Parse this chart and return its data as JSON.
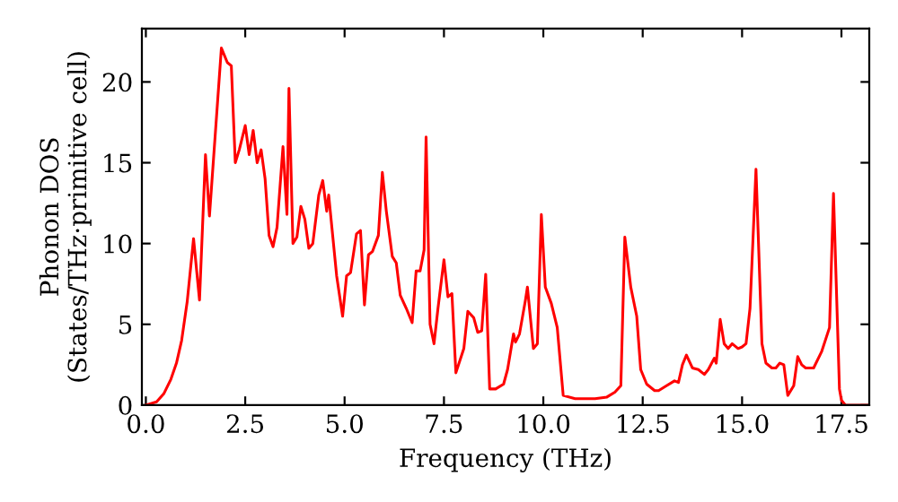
{
  "chart_data": {
    "type": "line",
    "xlabel": "Frequency (THz)",
    "ylabel": "Phonon DOS\n(States/THz·primitive cell)",
    "xlim": [
      -0.1,
      18.2
    ],
    "ylim": [
      0,
      23.3
    ],
    "xticks": [
      {
        "value": 0,
        "label": "0.0"
      },
      {
        "value": 2.5,
        "label": "2.5"
      },
      {
        "value": 5,
        "label": "5.0"
      },
      {
        "value": 7.5,
        "label": "7.5"
      },
      {
        "value": 10,
        "label": "10.0"
      },
      {
        "value": 12.5,
        "label": "12.5"
      },
      {
        "value": 15,
        "label": "15.0"
      },
      {
        "value": 17.5,
        "label": "17.5"
      }
    ],
    "yticks": [
      0,
      5,
      10,
      15,
      20
    ],
    "grid": false,
    "legend": false,
    "marker": "none",
    "line_style": "solid",
    "series": [
      {
        "color": "#ff0000",
        "x": [
          0,
          0.27,
          0.45,
          0.63,
          0.77,
          0.9,
          1.04,
          1.2,
          1.35,
          1.5,
          1.6,
          1.9,
          2.05,
          2.15,
          2.25,
          2.35,
          2.5,
          2.6,
          2.7,
          2.8,
          2.9,
          3.0,
          3.1,
          3.2,
          3.3,
          3.45,
          3.55,
          3.6,
          3.7,
          3.8,
          3.9,
          4.0,
          4.1,
          4.2,
          4.35,
          4.45,
          4.55,
          4.6,
          4.8,
          4.95,
          5.05,
          5.15,
          5.3,
          5.4,
          5.5,
          5.6,
          5.7,
          5.85,
          5.95,
          6.05,
          6.2,
          6.3,
          6.4,
          6.55,
          6.7,
          6.8,
          6.9,
          7.0,
          7.05,
          7.15,
          7.25,
          7.35,
          7.5,
          7.6,
          7.7,
          7.8,
          8.0,
          8.1,
          8.25,
          8.35,
          8.45,
          8.55,
          8.65,
          8.8,
          9.0,
          9.1,
          9.25,
          9.3,
          9.4,
          9.55,
          9.6,
          9.75,
          9.85,
          9.95,
          10.05,
          10.2,
          10.35,
          10.5,
          10.8,
          11.3,
          11.6,
          11.8,
          11.95,
          12.05,
          12.2,
          12.35,
          12.45,
          12.6,
          12.8,
          12.9,
          13.1,
          13.3,
          13.4,
          13.5,
          13.6,
          13.75,
          13.9,
          14.05,
          14.15,
          14.3,
          14.35,
          14.45,
          14.55,
          14.65,
          14.75,
          14.9,
          15.0,
          15.1,
          15.2,
          15.35,
          15.5,
          15.6,
          15.75,
          15.85,
          15.95,
          16.05,
          16.15,
          16.3,
          16.4,
          16.5,
          16.6,
          16.8,
          17.0,
          17.2,
          17.3,
          17.45,
          17.5,
          17.6,
          18.2
        ],
        "values": [
          0,
          0.2,
          0.7,
          1.6,
          2.6,
          4,
          6.4,
          10.3,
          6.5,
          15.5,
          11.7,
          22.1,
          21.2,
          21,
          15,
          15.8,
          17.3,
          15.5,
          17,
          15,
          15.8,
          14,
          10.5,
          9.8,
          11,
          16,
          11.8,
          19.6,
          10,
          10.4,
          12.3,
          11.5,
          9.7,
          10,
          13,
          13.9,
          12,
          13,
          8,
          5.5,
          8,
          8.2,
          10.6,
          10.8,
          6.2,
          9.3,
          9.5,
          10.5,
          14.4,
          12,
          9.2,
          8.8,
          6.8,
          6,
          5.1,
          8.3,
          8.3,
          9.6,
          16.6,
          5,
          3.8,
          6,
          9,
          6.7,
          6.9,
          2,
          3.5,
          5.8,
          5.4,
          4.5,
          4.6,
          8.1,
          1.0,
          1.0,
          1.3,
          2.2,
          4.4,
          3.9,
          4.4,
          6.5,
          7.3,
          3.5,
          3.8,
          11.8,
          7.3,
          6.3,
          4.8,
          0.6,
          0.4,
          0.4,
          0.5,
          0.8,
          1.2,
          10.4,
          7.3,
          5.5,
          2.2,
          1.3,
          0.9,
          0.9,
          1.2,
          1.5,
          1.4,
          2.5,
          3.1,
          2.3,
          2.2,
          1.9,
          2.2,
          2.9,
          2.6,
          5.3,
          3.8,
          3.5,
          3.8,
          3.5,
          3.6,
          3.8,
          6,
          14.6,
          3.8,
          2.6,
          2.3,
          2.3,
          2.6,
          2.5,
          0.6,
          1.2,
          3.0,
          2.5,
          2.3,
          2.3,
          3.3,
          4.8,
          13.1,
          1.0,
          0.3,
          0,
          0
        ]
      }
    ]
  }
}
